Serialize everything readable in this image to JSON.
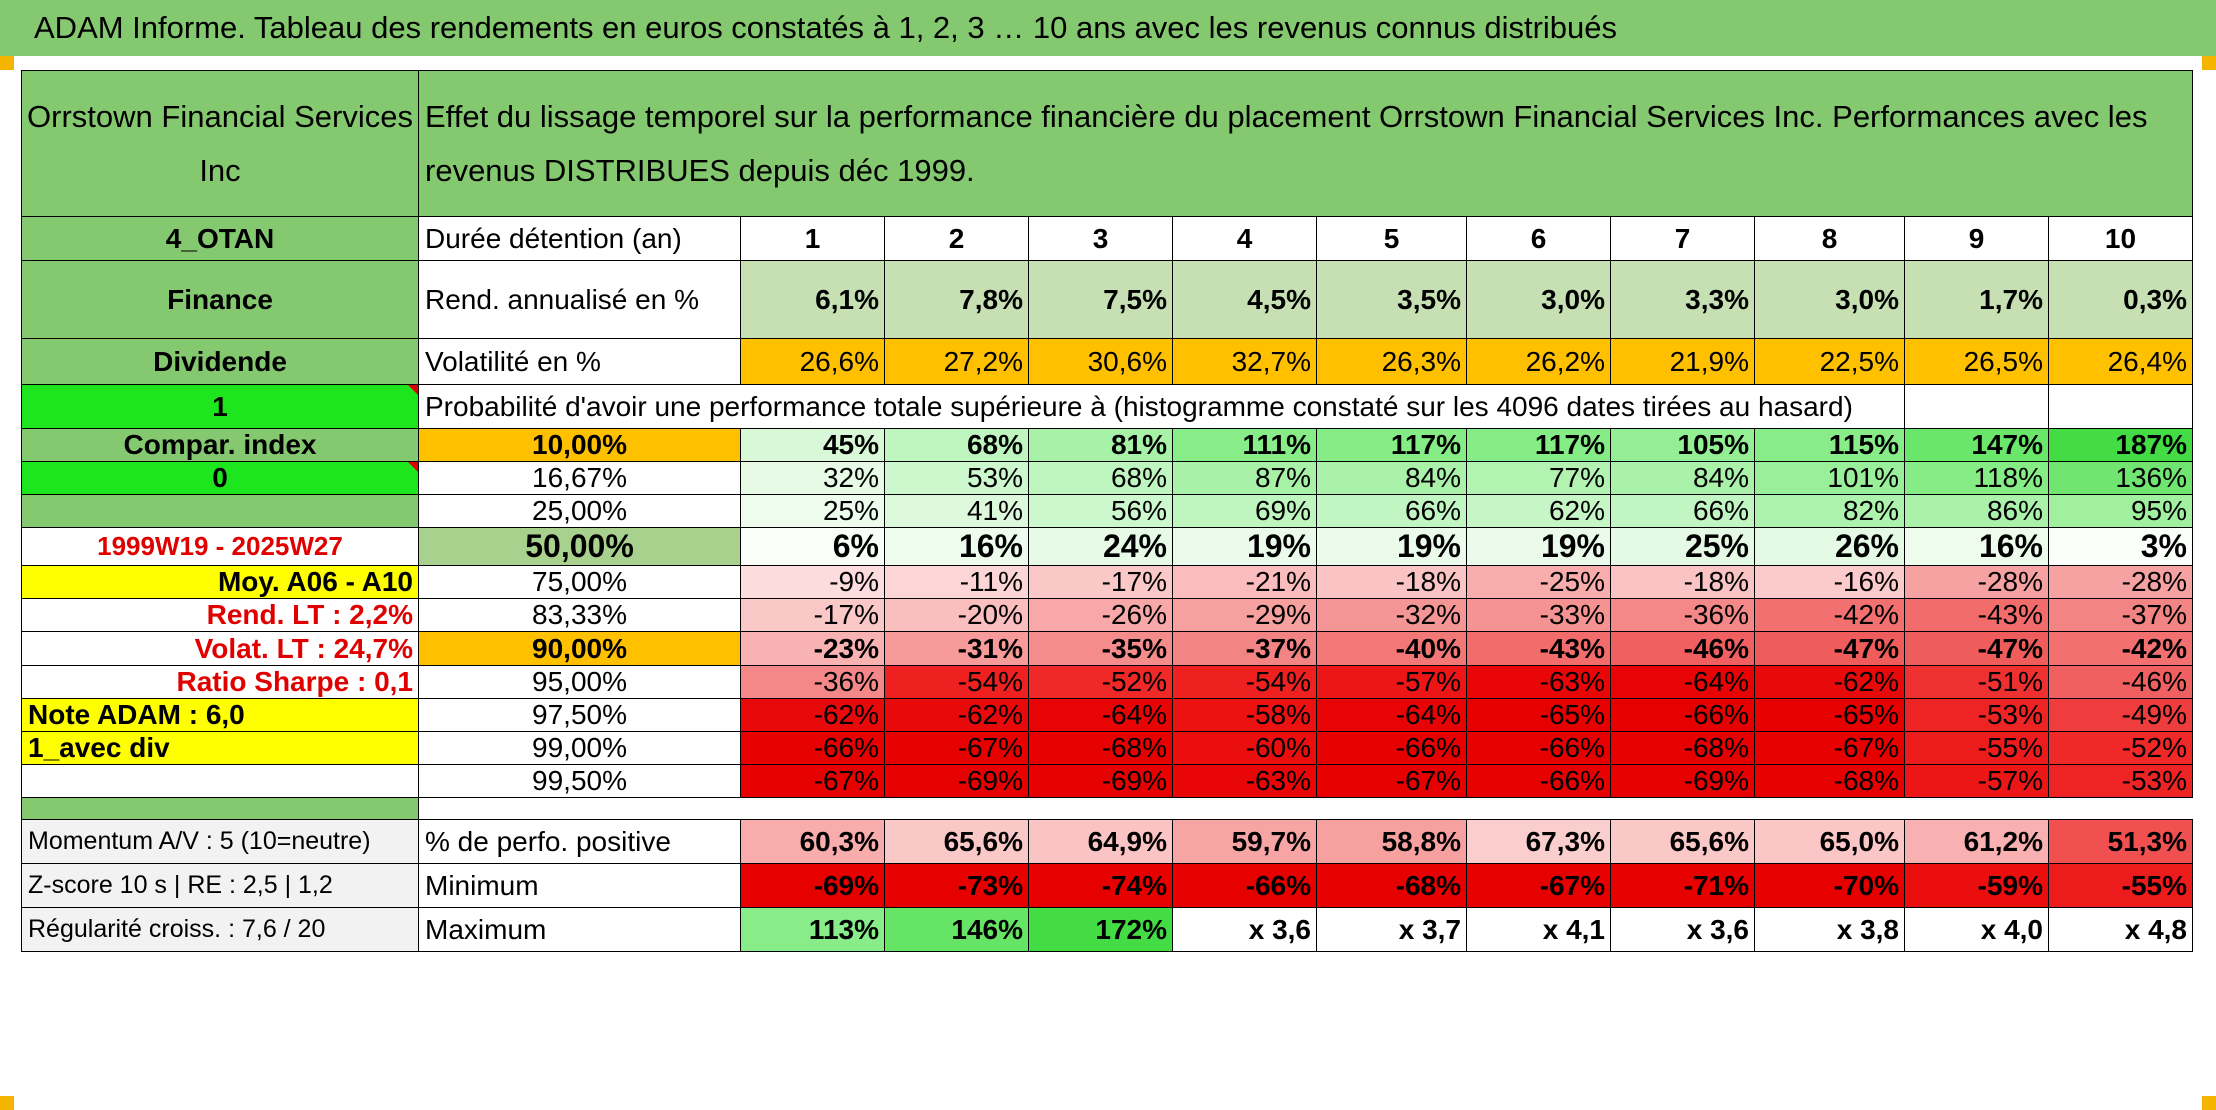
{
  "title": "ADAM Informe. Tableau des rendements en euros constatés à 1, 2, 3 … 10 ans avec les revenus connus distribués",
  "header": {
    "company": "Orrstown Financial Services Inc",
    "description": "Effet du lissage temporel sur la performance financière du placement Orrstown Financial Services Inc. Performances avec les revenus DISTRIBUES depuis déc 1999."
  },
  "left": {
    "ticker": "4_OTAN",
    "sector": "Finance",
    "dividend": "Dividende",
    "flag1": "1",
    "compar": "Compar. index",
    "flag0": "0",
    "period": "1999W19 - 2025W27",
    "moy": "Moy. A06 - A10",
    "rend_lt": "Rend. LT :   2,2%",
    "volat_lt": "Volat. LT :   24,7%",
    "sharpe": "Ratio Sharpe :   0,1",
    "note": "Note ADAM : 6,0",
    "avec_div": "1_avec div",
    "momentum": "Momentum A/V : 5 (10=neutre)",
    "zscore": "Z-score 10 s | RE : 2,5 | 1,2",
    "regularite": "Régularité croiss. : 7,6 / 20"
  },
  "table": {
    "duree_label": "Durée détention (an)",
    "years": [
      "1",
      "2",
      "3",
      "4",
      "5",
      "6",
      "7",
      "8",
      "9",
      "10"
    ],
    "rend_label": "Rend. annualisé en %",
    "rend": [
      "6,1%",
      "7,8%",
      "7,5%",
      "4,5%",
      "3,5%",
      "3,0%",
      "3,3%",
      "3,0%",
      "1,7%",
      "0,3%"
    ],
    "vol_label": "Volatilité en %",
    "vol": [
      "26,6%",
      "27,2%",
      "30,6%",
      "32,7%",
      "26,3%",
      "26,2%",
      "21,9%",
      "22,5%",
      "26,5%",
      "26,4%"
    ],
    "prob_label": "Probabilité d'avoir une performance totale supérieure à (histogramme constaté sur les 4096 dates tirées au hasard)",
    "rows": [
      {
        "p": "10,00%",
        "v": [
          "45%",
          "68%",
          "81%",
          "111%",
          "117%",
          "117%",
          "105%",
          "115%",
          "147%",
          "187%"
        ],
        "bg": [
          "#d8f8d8",
          "#bff5bf",
          "#a8f2a8",
          "#88ec88",
          "#86ec86",
          "#86ec86",
          "#94ee94",
          "#88ec88",
          "#6ae66a",
          "#44dc44"
        ],
        "pbg": "#ffc000",
        "bold": true,
        "big": false
      },
      {
        "p": "16,67%",
        "v": [
          "32%",
          "53%",
          "68%",
          "87%",
          "84%",
          "77%",
          "84%",
          "101%",
          "118%",
          "136%"
        ],
        "bg": [
          "#e6fae6",
          "#cdf7cd",
          "#bff5bf",
          "#a8f2a8",
          "#aaf2aa",
          "#b2f3b2",
          "#aaf2aa",
          "#9af09a",
          "#86ec86",
          "#70e670"
        ],
        "pbg": "#ffffff",
        "bold": false,
        "big": false
      },
      {
        "p": "25,00%",
        "v": [
          "25%",
          "41%",
          "56%",
          "69%",
          "66%",
          "62%",
          "66%",
          "82%",
          "86%",
          "95%"
        ],
        "bg": [
          "#eefcee",
          "#dcf9dc",
          "#cdf7cd",
          "#bff5bf",
          "#c1f5c1",
          "#c6f6c6",
          "#c1f5c1",
          "#adf2ad",
          "#aaf2aa",
          "#a0f0a0"
        ],
        "pbg": "#ffffff",
        "bold": false,
        "big": false
      },
      {
        "p": "50,00%",
        "v": [
          "6%",
          "16%",
          "24%",
          "19%",
          "19%",
          "19%",
          "25%",
          "26%",
          "16%",
          "3%"
        ],
        "bg": [
          "#f9fef9",
          "#eefcee",
          "#e6fae6",
          "#ebfbeb",
          "#ebfbeb",
          "#ebfbeb",
          "#e5fae5",
          "#e4fae4",
          "#eefcee",
          "#fbfefb"
        ],
        "pbg": "#a9d18e",
        "bold": true,
        "big": true
      },
      {
        "p": "75,00%",
        "v": [
          "-9%",
          "-11%",
          "-17%",
          "-21%",
          "-18%",
          "-25%",
          "-18%",
          "-16%",
          "-28%",
          "-28%"
        ],
        "bg": [
          "#fcdcdc",
          "#fcd6d6",
          "#fbc8c8",
          "#fabcbc",
          "#fbc4c4",
          "#f8acac",
          "#fbc4c4",
          "#fbcaca",
          "#f7a2a2",
          "#f7a2a2"
        ],
        "pbg": "#ffffff",
        "bold": false,
        "big": false
      },
      {
        "p": "83,33%",
        "v": [
          "-17%",
          "-20%",
          "-26%",
          "-29%",
          "-32%",
          "-33%",
          "-36%",
          "-42%",
          "-43%",
          "-37%"
        ],
        "bg": [
          "#fbc8c8",
          "#fabebe",
          "#f8a8a8",
          "#f7a0a0",
          "#f59696",
          "#f59292",
          "#f48888",
          "#f27070",
          "#f26c6c",
          "#f38484"
        ],
        "pbg": "#ffffff",
        "bold": false,
        "big": false
      },
      {
        "p": "90,00%",
        "v": [
          "-23%",
          "-31%",
          "-35%",
          "-37%",
          "-40%",
          "-43%",
          "-46%",
          "-47%",
          "-47%",
          "-42%"
        ],
        "bg": [
          "#f9b2b2",
          "#f69a9a",
          "#f48c8c",
          "#f38484",
          "#f27878",
          "#f26c6c",
          "#f06060",
          "#ef5c5c",
          "#ef5c5c",
          "#f27070"
        ],
        "pbg": "#ffc000",
        "bold": true,
        "big": false
      },
      {
        "p": "95,00%",
        "v": [
          "-36%",
          "-54%",
          "-52%",
          "-54%",
          "-57%",
          "-63%",
          "-64%",
          "-62%",
          "-51%",
          "-46%"
        ],
        "bg": [
          "#f48888",
          "#ee2020",
          "#ef2828",
          "#ee2020",
          "#ec1616",
          "#e80606",
          "#e80404",
          "#e80a0a",
          "#ef3030",
          "#f06060"
        ],
        "pbg": "#ffffff",
        "bold": false,
        "big": false
      },
      {
        "p": "97,50%",
        "v": [
          "-62%",
          "-62%",
          "-64%",
          "-58%",
          "-64%",
          "-65%",
          "-66%",
          "-65%",
          "-53%",
          "-49%"
        ],
        "bg": [
          "#e80a0a",
          "#e80a0a",
          "#e80404",
          "#ec1212",
          "#e80404",
          "#e60000",
          "#e60000",
          "#e60000",
          "#ee2424",
          "#ef3c3c"
        ],
        "pbg": "#ffffff",
        "bold": false,
        "big": false
      },
      {
        "p": "99,00%",
        "v": [
          "-66%",
          "-67%",
          "-68%",
          "-60%",
          "-66%",
          "-66%",
          "-68%",
          "-67%",
          "-55%",
          "-52%"
        ],
        "bg": [
          "#e60000",
          "#e60000",
          "#e60000",
          "#ea0e0e",
          "#e60000",
          "#e60000",
          "#e60000",
          "#e60000",
          "#ed1c1c",
          "#ef2828"
        ],
        "pbg": "#ffffff",
        "bold": false,
        "big": false
      },
      {
        "p": "99,50%",
        "v": [
          "-67%",
          "-69%",
          "-69%",
          "-63%",
          "-67%",
          "-66%",
          "-69%",
          "-68%",
          "-57%",
          "-53%"
        ],
        "bg": [
          "#e60000",
          "#e60000",
          "#e60000",
          "#e80606",
          "#e60000",
          "#e60000",
          "#e60000",
          "#e60000",
          "#ec1616",
          "#ee2424"
        ],
        "pbg": "#ffffff",
        "bold": false,
        "big": false
      }
    ],
    "pos_label": "% de perfo. positive",
    "pos": [
      "60,3%",
      "65,6%",
      "64,9%",
      "59,7%",
      "58,8%",
      "67,3%",
      "65,6%",
      "65,0%",
      "61,2%",
      "51,3%"
    ],
    "pos_bg": [
      "#f8acac",
      "#fbc8c8",
      "#fbc4c4",
      "#f7a4a4",
      "#f6a0a0",
      "#fbcece",
      "#fbc8c8",
      "#fbc6c6",
      "#f8b0b0",
      "#f05050"
    ],
    "min_label": "Minimum",
    "min": [
      "-69%",
      "-73%",
      "-74%",
      "-66%",
      "-68%",
      "-67%",
      "-71%",
      "-70%",
      "-59%",
      "-55%"
    ],
    "min_bg": [
      "#e60000",
      "#e60000",
      "#e60000",
      "#e60000",
      "#e60000",
      "#e60000",
      "#e60000",
      "#e60000",
      "#ea0e0e",
      "#ed1c1c"
    ],
    "max_label": "Maximum",
    "max": [
      "113%",
      "146%",
      "172%",
      "x 3,6",
      "x 3,7",
      "x 4,1",
      "x 3,6",
      "x 3,8",
      "x 4,0",
      "x 4,8"
    ],
    "max_bg": [
      "#88ec88",
      "#66e466",
      "#44dc44",
      "#ffffff",
      "#ffffff",
      "#ffffff",
      "#ffffff",
      "#ffffff",
      "#ffffff",
      "#ffffff"
    ]
  },
  "colors": {
    "header_green": "#84c96f",
    "bright_green": "#1ee61e",
    "yellow": "#ffff00",
    "orange": "#ffc000",
    "red_text": "#e00000"
  }
}
